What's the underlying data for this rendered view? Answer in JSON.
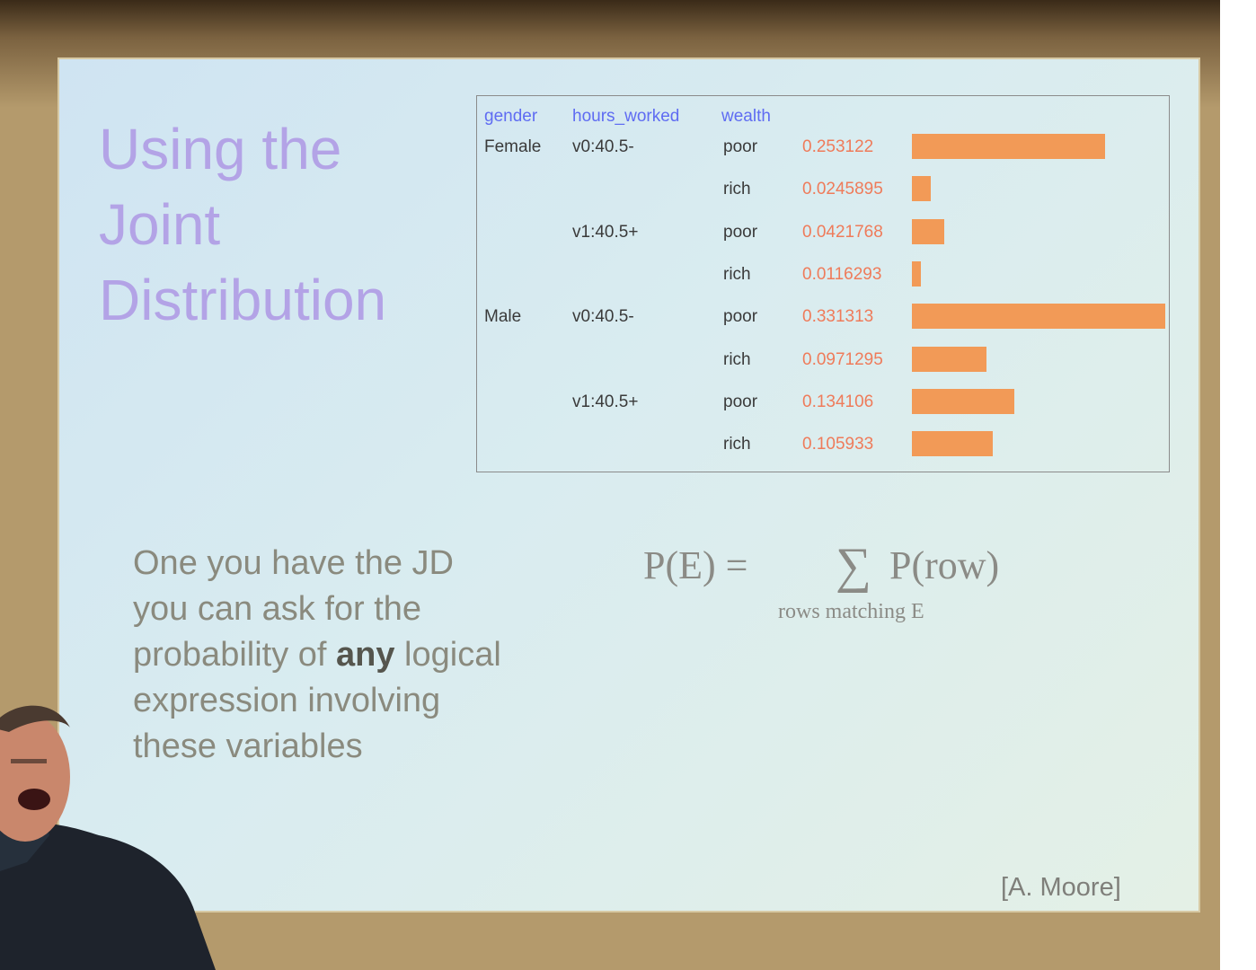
{
  "slide": {
    "title_lines": [
      "Using the",
      "Joint",
      "Distribution"
    ],
    "table": {
      "headers": [
        "gender",
        "hours_worked",
        "wealth"
      ],
      "rows": [
        {
          "gender": "Female",
          "hours": "v0:40.5-",
          "wealth": "poor",
          "prob": "0.253122",
          "value": 0.253122
        },
        {
          "gender": "",
          "hours": "",
          "wealth": "rich",
          "prob": "0.0245895",
          "value": 0.0245895
        },
        {
          "gender": "",
          "hours": "v1:40.5+",
          "wealth": "poor",
          "prob": "0.0421768",
          "value": 0.0421768
        },
        {
          "gender": "",
          "hours": "",
          "wealth": "rich",
          "prob": "0.0116293",
          "value": 0.0116293
        },
        {
          "gender": "Male",
          "hours": "v0:40.5-",
          "wealth": "poor",
          "prob": "0.331313",
          "value": 0.331313
        },
        {
          "gender": "",
          "hours": "",
          "wealth": "rich",
          "prob": "0.0971295",
          "value": 0.0971295
        },
        {
          "gender": "",
          "hours": "v1:40.5+",
          "wealth": "poor",
          "prob": "0.134106",
          "value": 0.134106
        },
        {
          "gender": "",
          "hours": "",
          "wealth": "rich",
          "prob": "0.105933",
          "value": 0.105933
        }
      ]
    },
    "body_lines": {
      "line1": "One you have the JD",
      "line2": "you can ask for the",
      "line3_pre": "probability of ",
      "line3_bold": "any",
      "line3_post": " logical",
      "line4": "expression involving",
      "line5": "these variables"
    },
    "formula": {
      "lhs": "P(E) =",
      "sigma": "∑",
      "rhs": "P(row)",
      "subscript": "rows matching E"
    },
    "credit": "[A. Moore]"
  },
  "colors": {
    "title": "#b3a3e6",
    "header": "#5f6cf2",
    "probability": "#ef7b5a",
    "bar": "#f29a57"
  }
}
